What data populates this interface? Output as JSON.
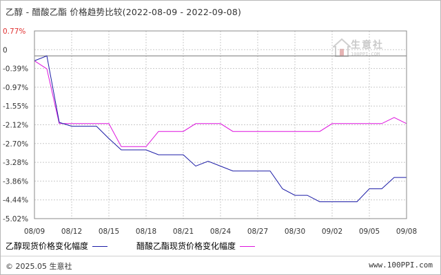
{
  "title": "乙醇 - 醋酸乙酯 价格趋势比较(2022-08-09 - 2022-09-08)",
  "footer": {
    "copyright": "© 2025.05 生意社",
    "site": "www.100PPI.com"
  },
  "watermark": {
    "text": "生意社",
    "sub": "100PPI.COM"
  },
  "chart_data": {
    "type": "line",
    "title": "乙醇 - 醋酸乙酯 价格趋势比较(2022-08-09 - 2022-09-08)",
    "xlabel": "",
    "ylabel": "",
    "x_tick_labels": [
      "08/09",
      "08/12",
      "08/15",
      "08/18",
      "08/21",
      "08/24",
      "08/27",
      "08/30",
      "09/02",
      "09/05",
      "09/08"
    ],
    "y_tick_labels": [
      "0.77%",
      "0",
      "-0.39%",
      "-0.97%",
      "-1.55%",
      "-2.12%",
      "-2.70%",
      "-3.28%",
      "-3.86%",
      "-4.44%",
      "-5.02%"
    ],
    "ylim": [
      -5.02,
      0.77
    ],
    "grid": true,
    "legend_position": "bottom",
    "x": [
      "08/09",
      "08/10",
      "08/11",
      "08/12",
      "08/13",
      "08/14",
      "08/15",
      "08/16",
      "08/17",
      "08/18",
      "08/19",
      "08/20",
      "08/21",
      "08/22",
      "08/23",
      "08/24",
      "08/25",
      "08/26",
      "08/27",
      "08/28",
      "08/29",
      "08/30",
      "08/31",
      "09/01",
      "09/02",
      "09/03",
      "09/04",
      "09/05",
      "09/06",
      "09/07",
      "09/08"
    ],
    "series": [
      {
        "name": "乙醇现货价格变化幅度",
        "color": "#1a1aa6",
        "values": [
          -0.15,
          0,
          -2.05,
          -2.17,
          -2.17,
          -2.17,
          -2.55,
          -2.9,
          -2.9,
          -2.9,
          -3.05,
          -3.05,
          -3.05,
          -3.4,
          -3.25,
          -3.4,
          -3.55,
          -3.55,
          -3.55,
          -3.55,
          -4.1,
          -4.3,
          -4.3,
          -4.5,
          -4.5,
          -4.5,
          -4.5,
          -4.1,
          -4.1,
          -3.75,
          -3.75
        ]
      },
      {
        "name": "醋酸乙酯现货价格变化幅度",
        "color": "#dd11dd",
        "values": [
          -0.15,
          -0.4,
          -2.09,
          -2.09,
          -2.09,
          -2.09,
          -2.09,
          -2.8,
          -2.8,
          -2.8,
          -2.33,
          -2.33,
          -2.33,
          -2.09,
          -2.09,
          -2.09,
          -2.33,
          -2.33,
          -2.33,
          -2.33,
          -2.33,
          -2.33,
          -2.33,
          -2.33,
          -2.09,
          -2.09,
          -2.09,
          -2.09,
          -2.09,
          -1.9,
          -2.09
        ]
      }
    ]
  }
}
